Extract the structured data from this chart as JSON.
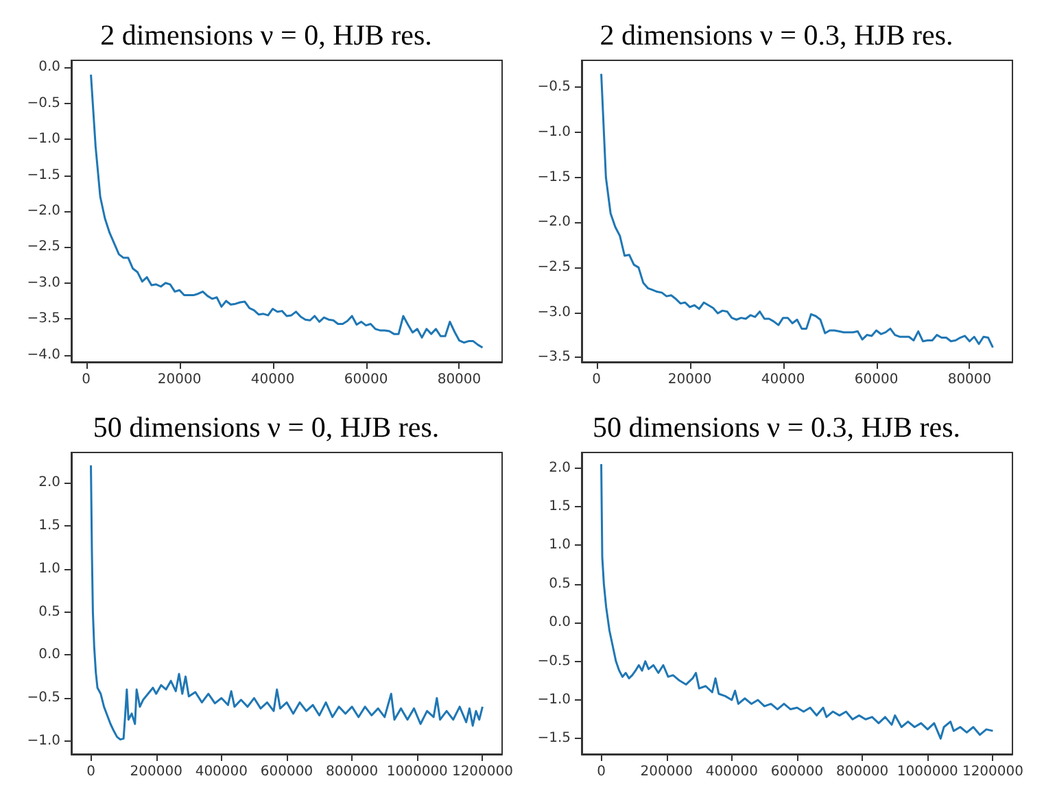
{
  "chart_data": [
    {
      "type": "line",
      "title": "2 dimensions ν = 0, HJB res.",
      "color": "#1f77b4",
      "xlim": [
        -3200,
        89200
      ],
      "ylim": [
        -4.1,
        0.1
      ],
      "xticks": [
        0,
        20000,
        40000,
        60000,
        80000
      ],
      "yticks": [
        {
          "value": -4,
          "label": "−4.0"
        },
        {
          "value": -3.5,
          "label": "−3.5"
        },
        {
          "value": -3,
          "label": "−3.0"
        },
        {
          "value": -2.5,
          "label": "−2.5"
        },
        {
          "value": -2,
          "label": "−2.0"
        },
        {
          "value": -1.5,
          "label": "−1.5"
        },
        {
          "value": -1,
          "label": "−1.0"
        },
        {
          "value": -0.5,
          "label": "−0.5"
        },
        {
          "value": 0,
          "label": "0.0"
        }
      ],
      "x": [
        1000,
        2000,
        3000,
        4000,
        5000,
        6000,
        7000,
        8000,
        9000,
        10000,
        11000,
        12000,
        13000,
        14000,
        15000,
        16000,
        17000,
        18000,
        19000,
        20000,
        21000,
        22000,
        23000,
        24000,
        25000,
        26000,
        27000,
        28000,
        29000,
        30000,
        31000,
        32000,
        33000,
        34000,
        35000,
        36000,
        37000,
        38000,
        39000,
        40000,
        41000,
        42000,
        43000,
        44000,
        45000,
        46000,
        47000,
        48000,
        49000,
        50000,
        51000,
        52000,
        53000,
        54000,
        55000,
        56000,
        57000,
        58000,
        59000,
        60000,
        61000,
        62000,
        63000,
        64000,
        65000,
        66000,
        67000,
        68000,
        69000,
        70000,
        71000,
        72000,
        73000,
        74000,
        75000,
        76000,
        77000,
        78000,
        79000,
        80000,
        81000,
        82000,
        83000,
        84000,
        85000
      ],
      "values": [
        -0.1,
        -1.1,
        -1.8,
        -2.1,
        -2.3,
        -2.45,
        -2.6,
        -2.65,
        -2.65,
        -2.8,
        -2.85,
        -2.98,
        -2.92,
        -3.03,
        -3.02,
        -3.05,
        -3.0,
        -3.02,
        -3.12,
        -3.1,
        -3.17,
        -3.17,
        -3.17,
        -3.15,
        -3.12,
        -3.18,
        -3.22,
        -3.2,
        -3.33,
        -3.25,
        -3.3,
        -3.29,
        -3.27,
        -3.26,
        -3.35,
        -3.38,
        -3.44,
        -3.43,
        -3.45,
        -3.36,
        -3.4,
        -3.39,
        -3.46,
        -3.45,
        -3.4,
        -3.47,
        -3.51,
        -3.52,
        -3.46,
        -3.54,
        -3.48,
        -3.51,
        -3.52,
        -3.57,
        -3.57,
        -3.53,
        -3.46,
        -3.58,
        -3.54,
        -3.59,
        -3.57,
        -3.64,
        -3.66,
        -3.66,
        -3.67,
        -3.71,
        -3.71,
        -3.46,
        -3.58,
        -3.69,
        -3.64,
        -3.76,
        -3.64,
        -3.71,
        -3.64,
        -3.74,
        -3.74,
        -3.54,
        -3.68,
        -3.8,
        -3.83,
        -3.81,
        -3.81,
        -3.86,
        -3.9
      ]
    },
    {
      "type": "line",
      "title": "2 dimensions ν = 0.3, HJB res.",
      "color": "#1f77b4",
      "xlim": [
        -3200,
        89200
      ],
      "ylim": [
        -3.55,
        -0.2
      ],
      "xticks": [
        0,
        20000,
        40000,
        60000,
        80000
      ],
      "yticks": [
        {
          "value": -3.5,
          "label": "−3.5"
        },
        {
          "value": -3,
          "label": "−3.0"
        },
        {
          "value": -2.5,
          "label": "−2.5"
        },
        {
          "value": -2,
          "label": "−2.0"
        },
        {
          "value": -1.5,
          "label": "−1.5"
        },
        {
          "value": -1,
          "label": "−1.0"
        },
        {
          "value": -0.5,
          "label": "−0.5"
        }
      ],
      "x": [
        1000,
        2000,
        3000,
        4000,
        5000,
        6000,
        7000,
        8000,
        9000,
        10000,
        11000,
        12000,
        13000,
        14000,
        15000,
        16000,
        17000,
        18000,
        19000,
        20000,
        21000,
        22000,
        23000,
        24000,
        25000,
        26000,
        27000,
        28000,
        29000,
        30000,
        31000,
        32000,
        33000,
        34000,
        35000,
        36000,
        37000,
        38000,
        39000,
        40000,
        41000,
        42000,
        43000,
        44000,
        45000,
        46000,
        47000,
        48000,
        49000,
        50000,
        51000,
        52000,
        53000,
        55000,
        56000,
        57000,
        58000,
        59000,
        60000,
        61000,
        62000,
        63000,
        64000,
        65000,
        66000,
        67000,
        68000,
        69000,
        70000,
        71000,
        72000,
        73000,
        74000,
        75000,
        76000,
        77000,
        78000,
        79000,
        80000,
        81000,
        82000,
        83000,
        84000,
        85000
      ],
      "values": [
        -0.35,
        -1.5,
        -1.9,
        -2.05,
        -2.15,
        -2.37,
        -2.36,
        -2.47,
        -2.5,
        -2.67,
        -2.73,
        -2.75,
        -2.77,
        -2.78,
        -2.82,
        -2.81,
        -2.85,
        -2.9,
        -2.89,
        -2.94,
        -2.92,
        -2.96,
        -2.89,
        -2.92,
        -2.95,
        -3.01,
        -2.98,
        -2.99,
        -3.06,
        -3.08,
        -3.06,
        -3.07,
        -3.03,
        -3.05,
        -2.99,
        -3.07,
        -3.07,
        -3.1,
        -3.14,
        -3.06,
        -3.06,
        -3.12,
        -3.08,
        -3.18,
        -3.18,
        -3.02,
        -3.04,
        -3.08,
        -3.23,
        -3.2,
        -3.2,
        -3.21,
        -3.22,
        -3.22,
        -3.21,
        -3.3,
        -3.25,
        -3.26,
        -3.2,
        -3.24,
        -3.22,
        -3.18,
        -3.25,
        -3.27,
        -3.27,
        -3.27,
        -3.31,
        -3.21,
        -3.32,
        -3.31,
        -3.31,
        -3.25,
        -3.28,
        -3.28,
        -3.32,
        -3.31,
        -3.28,
        -3.26,
        -3.32,
        -3.27,
        -3.35,
        -3.27,
        -3.28,
        -3.39
      ]
    },
    {
      "type": "line",
      "title": "50 dimensions ν = 0, HJB res.",
      "color": "#1f77b4",
      "xlim": [
        -60000,
        1260000
      ],
      "ylim": [
        -1.15,
        2.35
      ],
      "xticks": [
        0,
        200000,
        400000,
        600000,
        800000,
        1000000,
        1200000
      ],
      "yticks": [
        {
          "value": -1,
          "label": "−1.0"
        },
        {
          "value": -0.5,
          "label": "−0.5"
        },
        {
          "value": 0,
          "label": "0.0"
        },
        {
          "value": 0.5,
          "label": "0.5"
        },
        {
          "value": 1,
          "label": "1.0"
        },
        {
          "value": 1.5,
          "label": "1.5"
        },
        {
          "value": 2,
          "label": "2.0"
        }
      ],
      "x": [
        0,
        3000,
        6000,
        10000,
        15000,
        20000,
        30000,
        40000,
        50000,
        60000,
        70000,
        80000,
        90000,
        100000,
        105000,
        110000,
        115000,
        125000,
        135000,
        140000,
        150000,
        160000,
        175000,
        190000,
        200000,
        215000,
        230000,
        245000,
        260000,
        270000,
        280000,
        290000,
        300000,
        320000,
        340000,
        360000,
        380000,
        400000,
        420000,
        430000,
        440000,
        460000,
        480000,
        500000,
        520000,
        540000,
        560000,
        570000,
        580000,
        600000,
        620000,
        640000,
        660000,
        680000,
        700000,
        720000,
        740000,
        760000,
        780000,
        800000,
        820000,
        840000,
        860000,
        880000,
        900000,
        920000,
        930000,
        950000,
        970000,
        990000,
        1010000,
        1030000,
        1050000,
        1060000,
        1070000,
        1090000,
        1110000,
        1130000,
        1150000,
        1160000,
        1170000,
        1180000,
        1190000,
        1200000
      ],
      "values": [
        2.2,
        1.2,
        0.5,
        0.1,
        -0.2,
        -0.38,
        -0.45,
        -0.6,
        -0.7,
        -0.8,
        -0.88,
        -0.95,
        -0.98,
        -0.97,
        -0.7,
        -0.4,
        -0.75,
        -0.68,
        -0.8,
        -0.4,
        -0.6,
        -0.52,
        -0.45,
        -0.38,
        -0.45,
        -0.35,
        -0.4,
        -0.3,
        -0.42,
        -0.22,
        -0.45,
        -0.25,
        -0.48,
        -0.43,
        -0.55,
        -0.45,
        -0.56,
        -0.5,
        -0.58,
        -0.42,
        -0.6,
        -0.52,
        -0.6,
        -0.5,
        -0.62,
        -0.55,
        -0.65,
        -0.4,
        -0.62,
        -0.55,
        -0.68,
        -0.55,
        -0.65,
        -0.58,
        -0.7,
        -0.55,
        -0.72,
        -0.6,
        -0.68,
        -0.6,
        -0.72,
        -0.6,
        -0.7,
        -0.62,
        -0.72,
        -0.45,
        -0.75,
        -0.62,
        -0.75,
        -0.62,
        -0.8,
        -0.65,
        -0.72,
        -0.5,
        -0.75,
        -0.65,
        -0.75,
        -0.6,
        -0.78,
        -0.62,
        -0.82,
        -0.65,
        -0.75,
        -0.6
      ]
    },
    {
      "type": "line",
      "title": "50 dimensions ν = 0.3, HJB res.",
      "color": "#1f77b4",
      "xlim": [
        -60000,
        1260000
      ],
      "ylim": [
        -1.7,
        2.2
      ],
      "xticks": [
        0,
        200000,
        400000,
        600000,
        800000,
        1000000,
        1200000
      ],
      "yticks": [
        {
          "value": -1.5,
          "label": "−1.5"
        },
        {
          "value": -1,
          "label": "−1.0"
        },
        {
          "value": -0.5,
          "label": "−0.5"
        },
        {
          "value": 0,
          "label": "0.0"
        },
        {
          "value": 0.5,
          "label": "0.5"
        },
        {
          "value": 1,
          "label": "1.0"
        },
        {
          "value": 1.5,
          "label": "1.5"
        },
        {
          "value": 2,
          "label": "2.0"
        }
      ],
      "x": [
        0,
        3000,
        8000,
        15000,
        25000,
        35000,
        45000,
        55000,
        65000,
        75000,
        85000,
        95000,
        105000,
        115000,
        125000,
        135000,
        145000,
        160000,
        175000,
        190000,
        205000,
        220000,
        240000,
        260000,
        280000,
        290000,
        300000,
        320000,
        340000,
        350000,
        360000,
        380000,
        400000,
        410000,
        420000,
        440000,
        460000,
        480000,
        500000,
        520000,
        540000,
        560000,
        580000,
        600000,
        620000,
        640000,
        660000,
        680000,
        690000,
        710000,
        730000,
        750000,
        770000,
        790000,
        810000,
        830000,
        850000,
        870000,
        890000,
        900000,
        920000,
        940000,
        960000,
        980000,
        1000000,
        1020000,
        1040000,
        1050000,
        1070000,
        1080000,
        1100000,
        1120000,
        1140000,
        1160000,
        1180000,
        1200000
      ],
      "values": [
        2.05,
        0.85,
        0.5,
        0.2,
        -0.1,
        -0.3,
        -0.5,
        -0.62,
        -0.7,
        -0.65,
        -0.72,
        -0.68,
        -0.62,
        -0.55,
        -0.62,
        -0.5,
        -0.6,
        -0.55,
        -0.65,
        -0.55,
        -0.7,
        -0.68,
        -0.75,
        -0.8,
        -0.72,
        -0.65,
        -0.85,
        -0.82,
        -0.9,
        -0.72,
        -0.92,
        -0.95,
        -1.0,
        -0.88,
        -1.05,
        -0.98,
        -1.05,
        -1.0,
        -1.08,
        -1.05,
        -1.12,
        -1.05,
        -1.12,
        -1.1,
        -1.15,
        -1.1,
        -1.2,
        -1.1,
        -1.22,
        -1.15,
        -1.2,
        -1.15,
        -1.25,
        -1.2,
        -1.25,
        -1.22,
        -1.3,
        -1.22,
        -1.32,
        -1.2,
        -1.35,
        -1.28,
        -1.35,
        -1.3,
        -1.38,
        -1.3,
        -1.5,
        -1.35,
        -1.28,
        -1.4,
        -1.35,
        -1.42,
        -1.35,
        -1.45,
        -1.38,
        -1.4
      ]
    }
  ]
}
